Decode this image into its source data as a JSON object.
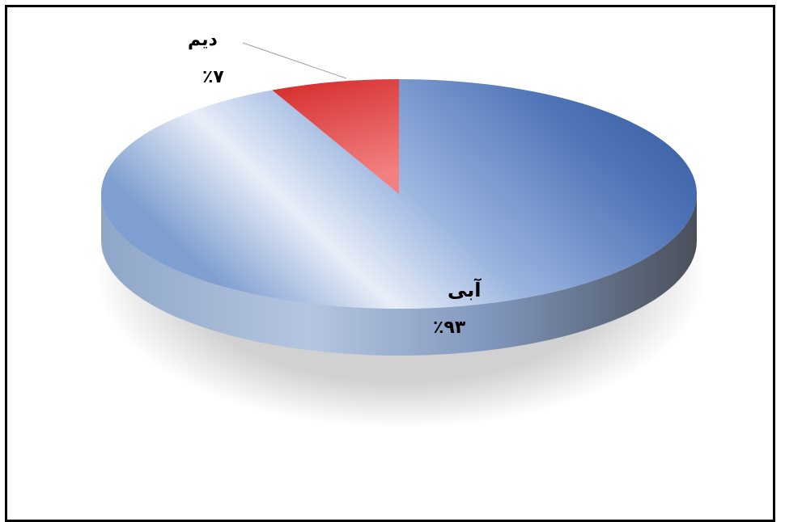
{
  "chart_data": {
    "type": "pie",
    "title": "",
    "slices": [
      {
        "label": "آبی",
        "value": 93,
        "value_label": "٪۹۳",
        "color": "#2f5597"
      },
      {
        "label": "دیم",
        "value": 7,
        "value_label": "٪۷",
        "color": "#e84646"
      }
    ],
    "legend": "none",
    "style": "3d"
  }
}
